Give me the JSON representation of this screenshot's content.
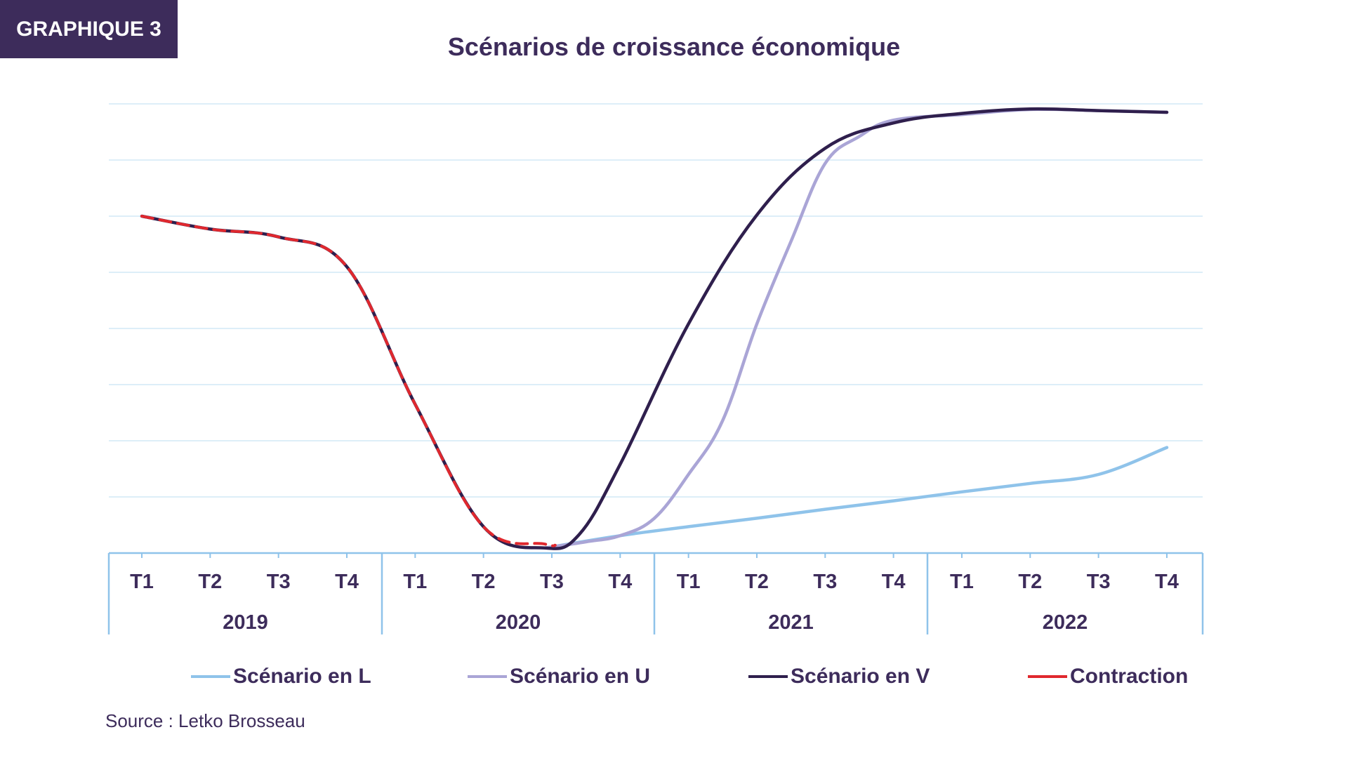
{
  "badge": "GRAPHIQUE 3",
  "source": "Source : Letko Brosseau",
  "colors": {
    "L": "#8fc3ea",
    "U": "#aaa5d6",
    "V": "#2f1f4d",
    "Contraction": "#e0282e",
    "grid": "#ddeef8",
    "axis": "#8fc3ea",
    "text": "#3d2c5b"
  },
  "chart_data": {
    "type": "line",
    "title": "Scénarios de croissance économique",
    "xlabel": "",
    "ylabel": "",
    "grid": true,
    "legend_placement": "bottom",
    "y_axis_labels_shown": false,
    "ylim": [
      0,
      8
    ],
    "x_ticks": [
      "T1",
      "T2",
      "T3",
      "T4",
      "T1",
      "T2",
      "T3",
      "T4",
      "T1",
      "T2",
      "T3",
      "T4",
      "T1",
      "T2",
      "T3",
      "T4"
    ],
    "year_groups": [
      "2019",
      "2020",
      "2021",
      "2022"
    ],
    "series": [
      {
        "name": "Scénario en L",
        "key": "L",
        "points": [
          [
            6.9,
            0.09
          ],
          [
            8.0,
            0.31
          ],
          [
            9.0,
            0.47
          ],
          [
            10.0,
            0.62
          ],
          [
            11.0,
            0.78
          ],
          [
            12.0,
            0.93
          ],
          [
            13.0,
            1.09
          ],
          [
            14.0,
            1.24
          ],
          [
            15.0,
            1.4
          ],
          [
            16.0,
            1.88
          ]
        ]
      },
      {
        "name": "Scénario en U",
        "key": "U",
        "points": [
          [
            6.9,
            0.09
          ],
          [
            7.5,
            0.2
          ],
          [
            8.0,
            0.31
          ],
          [
            8.5,
            0.62
          ],
          [
            9.0,
            1.4
          ],
          [
            9.5,
            2.36
          ],
          [
            10.0,
            4.08
          ],
          [
            10.5,
            5.55
          ],
          [
            11.0,
            6.94
          ],
          [
            11.5,
            7.42
          ],
          [
            12.0,
            7.71
          ],
          [
            13.0,
            7.81
          ],
          [
            14.0,
            7.9
          ],
          [
            15.0,
            7.88
          ],
          [
            16.0,
            7.85
          ]
        ]
      },
      {
        "name": "Scénario en V",
        "key": "V",
        "points": [
          [
            1.0,
            6.0
          ],
          [
            2.0,
            5.77
          ],
          [
            3.0,
            5.63
          ],
          [
            4.0,
            5.1
          ],
          [
            5.0,
            2.65
          ],
          [
            6.0,
            0.47
          ],
          [
            6.9,
            0.09
          ],
          [
            7.4,
            0.33
          ],
          [
            8.0,
            1.58
          ],
          [
            9.0,
            4.08
          ],
          [
            10.0,
            6.02
          ],
          [
            11.0,
            7.21
          ],
          [
            12.0,
            7.66
          ],
          [
            13.0,
            7.83
          ],
          [
            14.0,
            7.91
          ],
          [
            15.0,
            7.88
          ],
          [
            16.0,
            7.85
          ]
        ]
      },
      {
        "name": "Contraction",
        "key": "Contraction",
        "points": [
          [
            1.0,
            6.0
          ],
          [
            2.0,
            5.77
          ],
          [
            3.0,
            5.63
          ],
          [
            4.0,
            5.1
          ],
          [
            5.0,
            2.65
          ],
          [
            6.0,
            0.47
          ],
          [
            6.9,
            0.16
          ],
          [
            7.05,
            0.14
          ]
        ]
      }
    ]
  }
}
